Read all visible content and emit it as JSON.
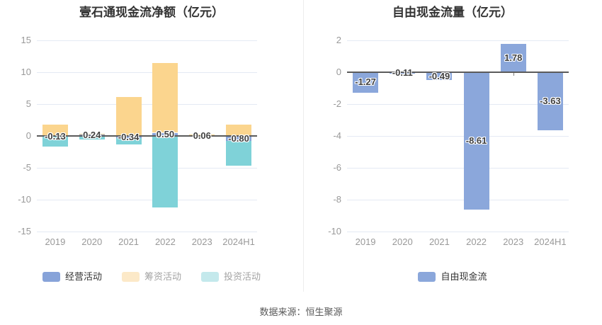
{
  "source_note": "数据来源：恒生聚源",
  "colors": {
    "background": "#ffffff",
    "grid_line": "#e4eaf4",
    "zero_line": "#5b5b5b",
    "axis_label": "#999999",
    "axis_tick": "#7f7f7f",
    "data_label": "#404040",
    "divider": "#ededed",
    "title": "#333333"
  },
  "chart_data": [
    {
      "type": "bar",
      "variant": "stacked",
      "title": "壹石通现金流净额（亿元）",
      "categories": [
        "2019",
        "2020",
        "2021",
        "2022",
        "2023",
        "2024H1"
      ],
      "ylim": [
        -15,
        15
      ],
      "yticks": [
        15,
        10,
        5,
        0,
        -5,
        -10,
        -15
      ],
      "grid": true,
      "legend_position": "bottom",
      "series": [
        {
          "name": "经营活动",
          "color": "#87a3d9",
          "values": [
            -0.13,
            0.24,
            -0.34,
            0.5,
            0.06,
            -0.8
          ],
          "labels": [
            "-0.13",
            "0.24",
            "-0.34",
            "0.50",
            "0.06",
            "-0.80"
          ],
          "show_labels": true
        },
        {
          "name": "筹资活动",
          "color": "#fbd58e",
          "values": [
            1.8,
            0.05,
            6.15,
            10.9,
            0.2,
            1.8
          ],
          "show_labels": false
        },
        {
          "name": "投资活动",
          "color": "#7fd2d8",
          "values": [
            -1.55,
            -0.6,
            -0.95,
            -11.2,
            -0.15,
            -3.9
          ],
          "show_labels": false
        }
      ],
      "legend": [
        {
          "label": "经营活动",
          "swatch": "#87a3d9",
          "text_color": "#333333"
        },
        {
          "label": "筹资活动",
          "swatch": "#fce9c8",
          "text_color": "#a3a3a3"
        },
        {
          "label": "投资活动",
          "swatch": "#c4e9ec",
          "text_color": "#a3a3a3"
        }
      ]
    },
    {
      "type": "bar",
      "variant": "single",
      "title": "自由现金流量（亿元）",
      "categories": [
        "2019",
        "2020",
        "2021",
        "2022",
        "2023",
        "2024H1"
      ],
      "ylim": [
        -10,
        2
      ],
      "yticks": [
        2,
        0,
        -2,
        -4,
        -6,
        -8,
        -10
      ],
      "grid": true,
      "legend_position": "bottom",
      "series": [
        {
          "name": "自由现金流",
          "color": "#8ba7db",
          "values": [
            -1.27,
            -0.11,
            -0.49,
            -8.61,
            1.78,
            -3.63
          ],
          "labels": [
            "-1.27",
            "-0.11",
            "-0.49",
            "-8.61",
            "1.78",
            "-3.63"
          ],
          "show_labels": true
        }
      ],
      "legend": [
        {
          "label": "自由现金流",
          "swatch": "#8ba7db",
          "text_color": "#333333"
        }
      ]
    }
  ]
}
